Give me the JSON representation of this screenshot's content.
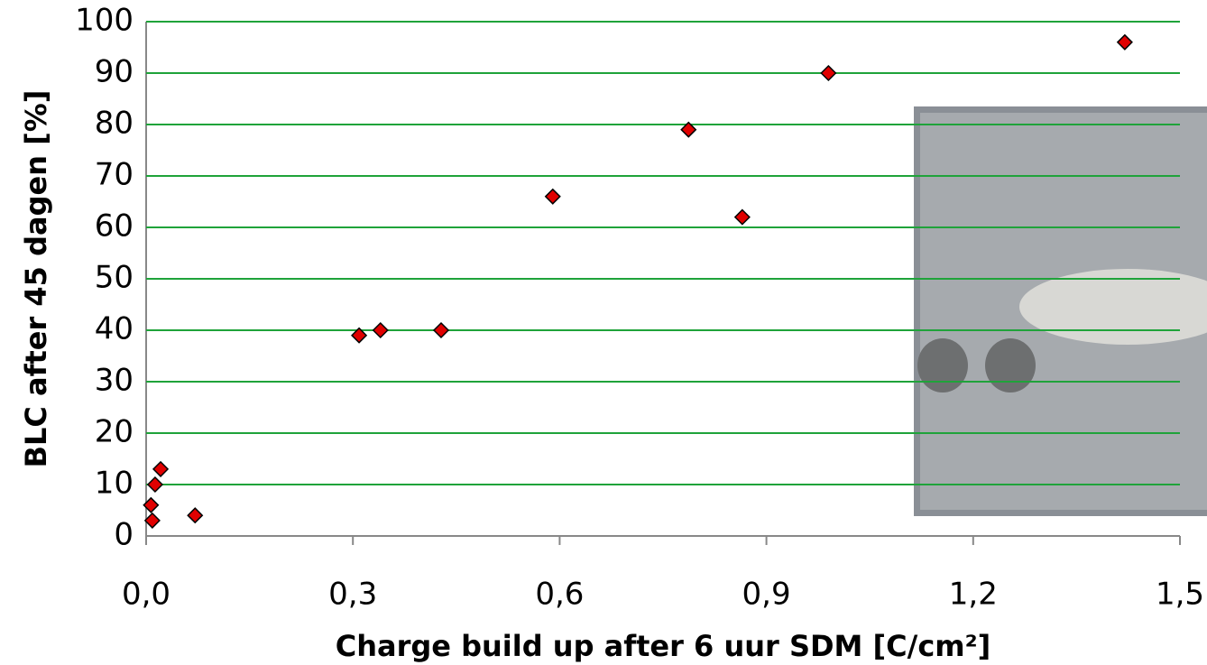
{
  "chart_data": {
    "type": "scatter",
    "x_label": "Charge build up after 6 uur SDM [C/cm²]",
    "y_label": "BLC after 45 dagen [%]",
    "xlim": [
      0,
      1.5
    ],
    "xticks": [
      {
        "value": 0,
        "label": "0,0"
      },
      {
        "value": 0.3,
        "label": "0,3"
      },
      {
        "value": 0.6,
        "label": "0,6"
      },
      {
        "value": 0.9,
        "label": "0,9"
      },
      {
        "value": 1.2,
        "label": "1,2"
      },
      {
        "value": 1.5,
        "label": "1,5"
      }
    ],
    "ylim": [
      0,
      100
    ],
    "yticks": [
      0,
      10,
      20,
      30,
      40,
      50,
      60,
      70,
      80,
      90,
      100
    ],
    "grid": true,
    "grid_color": "#1fa33a",
    "color": "#e00000",
    "x": [
      1.42,
      0.99,
      0.787,
      0.865,
      0.59,
      0.428,
      0.34,
      0.309,
      0.021,
      0.013,
      0.007,
      0.009,
      0.071
    ],
    "values": [
      96,
      90,
      79,
      62,
      66,
      40,
      40,
      39,
      13,
      10,
      6,
      3,
      4
    ]
  }
}
